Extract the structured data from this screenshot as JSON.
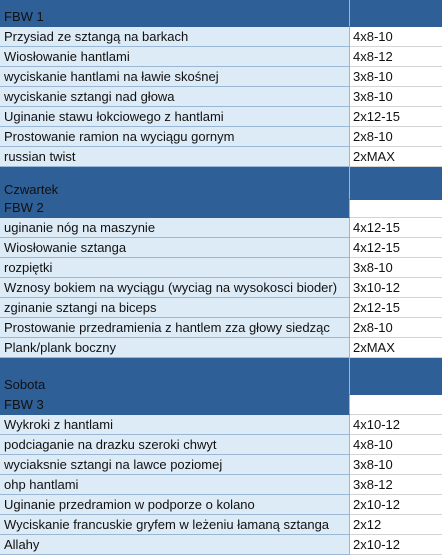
{
  "sections": [
    {
      "title": "FBW 1",
      "rows": [
        [
          "Przysiad ze sztangą na barkach",
          "4x8-10"
        ],
        [
          "Wiosłowanie hantlami",
          "4x8-12"
        ],
        [
          "wyciskanie hantlami na ławie skośnej",
          "3x8-10"
        ],
        [
          "wyciskanie sztangi nad głowa",
          "3x8-10"
        ],
        [
          "Uginanie stawu łokciowego z hantlami",
          "2x12-15"
        ],
        [
          "Prostowanie ramion na wyciągu gornym",
          "2x8-10"
        ],
        [
          "russian twist",
          "2xMAX"
        ]
      ]
    },
    {
      "day": "Czwartek",
      "title": "FBW 2",
      "rows": [
        [
          "uginanie nóg na maszynie",
          "4x12-15"
        ],
        [
          "Wiosłowanie sztanga",
          "4x12-15"
        ],
        [
          "rozpiętki",
          "3x8-10"
        ],
        [
          "Wznosy bokiem na wyciągu (wyciag na wysokosci bioder)",
          "3x10-12"
        ],
        [
          "zginanie sztangi na biceps",
          "2x12-15"
        ],
        [
          "Prostowanie przedramienia z hantlem zza głowy siedząc",
          "2x8-10"
        ],
        [
          "Plank/plank boczny",
          "2xMAX"
        ]
      ]
    },
    {
      "day": "Sobota",
      "title": "FBW 3",
      "rows": [
        [
          "Wykroki z hantlami",
          "4x10-12"
        ],
        [
          "podciaganie na drazku szeroki chwyt",
          "4x8-10"
        ],
        [
          "wyciaksnie sztangi na lawce poziomej",
          "3x8-10"
        ],
        [
          "ohp hantlami",
          "3x8-12"
        ],
        [
          "Uginanie przedramion w podporze o kolano",
          "2x10-12"
        ],
        [
          "Wyciskanie francuskie gryfem w leżeniu łamaną sztanga",
          "2x12"
        ],
        [
          "Allahy",
          "2x10-12"
        ]
      ]
    }
  ]
}
